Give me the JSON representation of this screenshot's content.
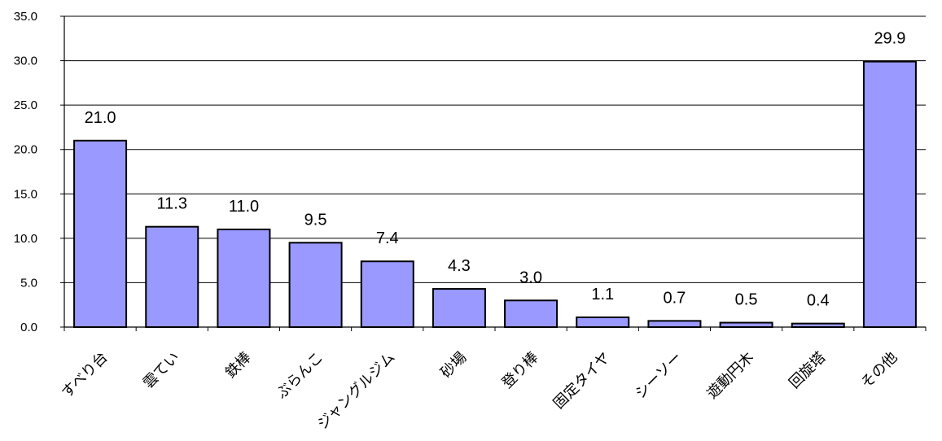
{
  "chart_data": {
    "type": "bar",
    "categories": [
      "すべり台",
      "雲てい",
      "鉄棒",
      "ぶらんこ",
      "ジャングルジム",
      "砂場",
      "登り棒",
      "固定タイヤ",
      "シーソー",
      "遊動円木",
      "回旋塔",
      "その他"
    ],
    "values": [
      21.0,
      11.3,
      11.0,
      9.5,
      7.4,
      4.3,
      3.0,
      1.1,
      0.7,
      0.5,
      0.4,
      29.9
    ],
    "data_labels": [
      "21.0",
      "11.3",
      "11.0",
      "9.5",
      "7.4",
      "4.3",
      "3.0",
      "1.1",
      "0.7",
      "0.5",
      "0.4",
      "29.9"
    ],
    "yticks": [
      "0.0",
      "5.0",
      "10.0",
      "15.0",
      "20.0",
      "25.0",
      "30.0",
      "35.0"
    ],
    "ylim": [
      0,
      35
    ],
    "grid": true,
    "bar_color": "#9999ff",
    "bar_edge_color": "#000000"
  }
}
